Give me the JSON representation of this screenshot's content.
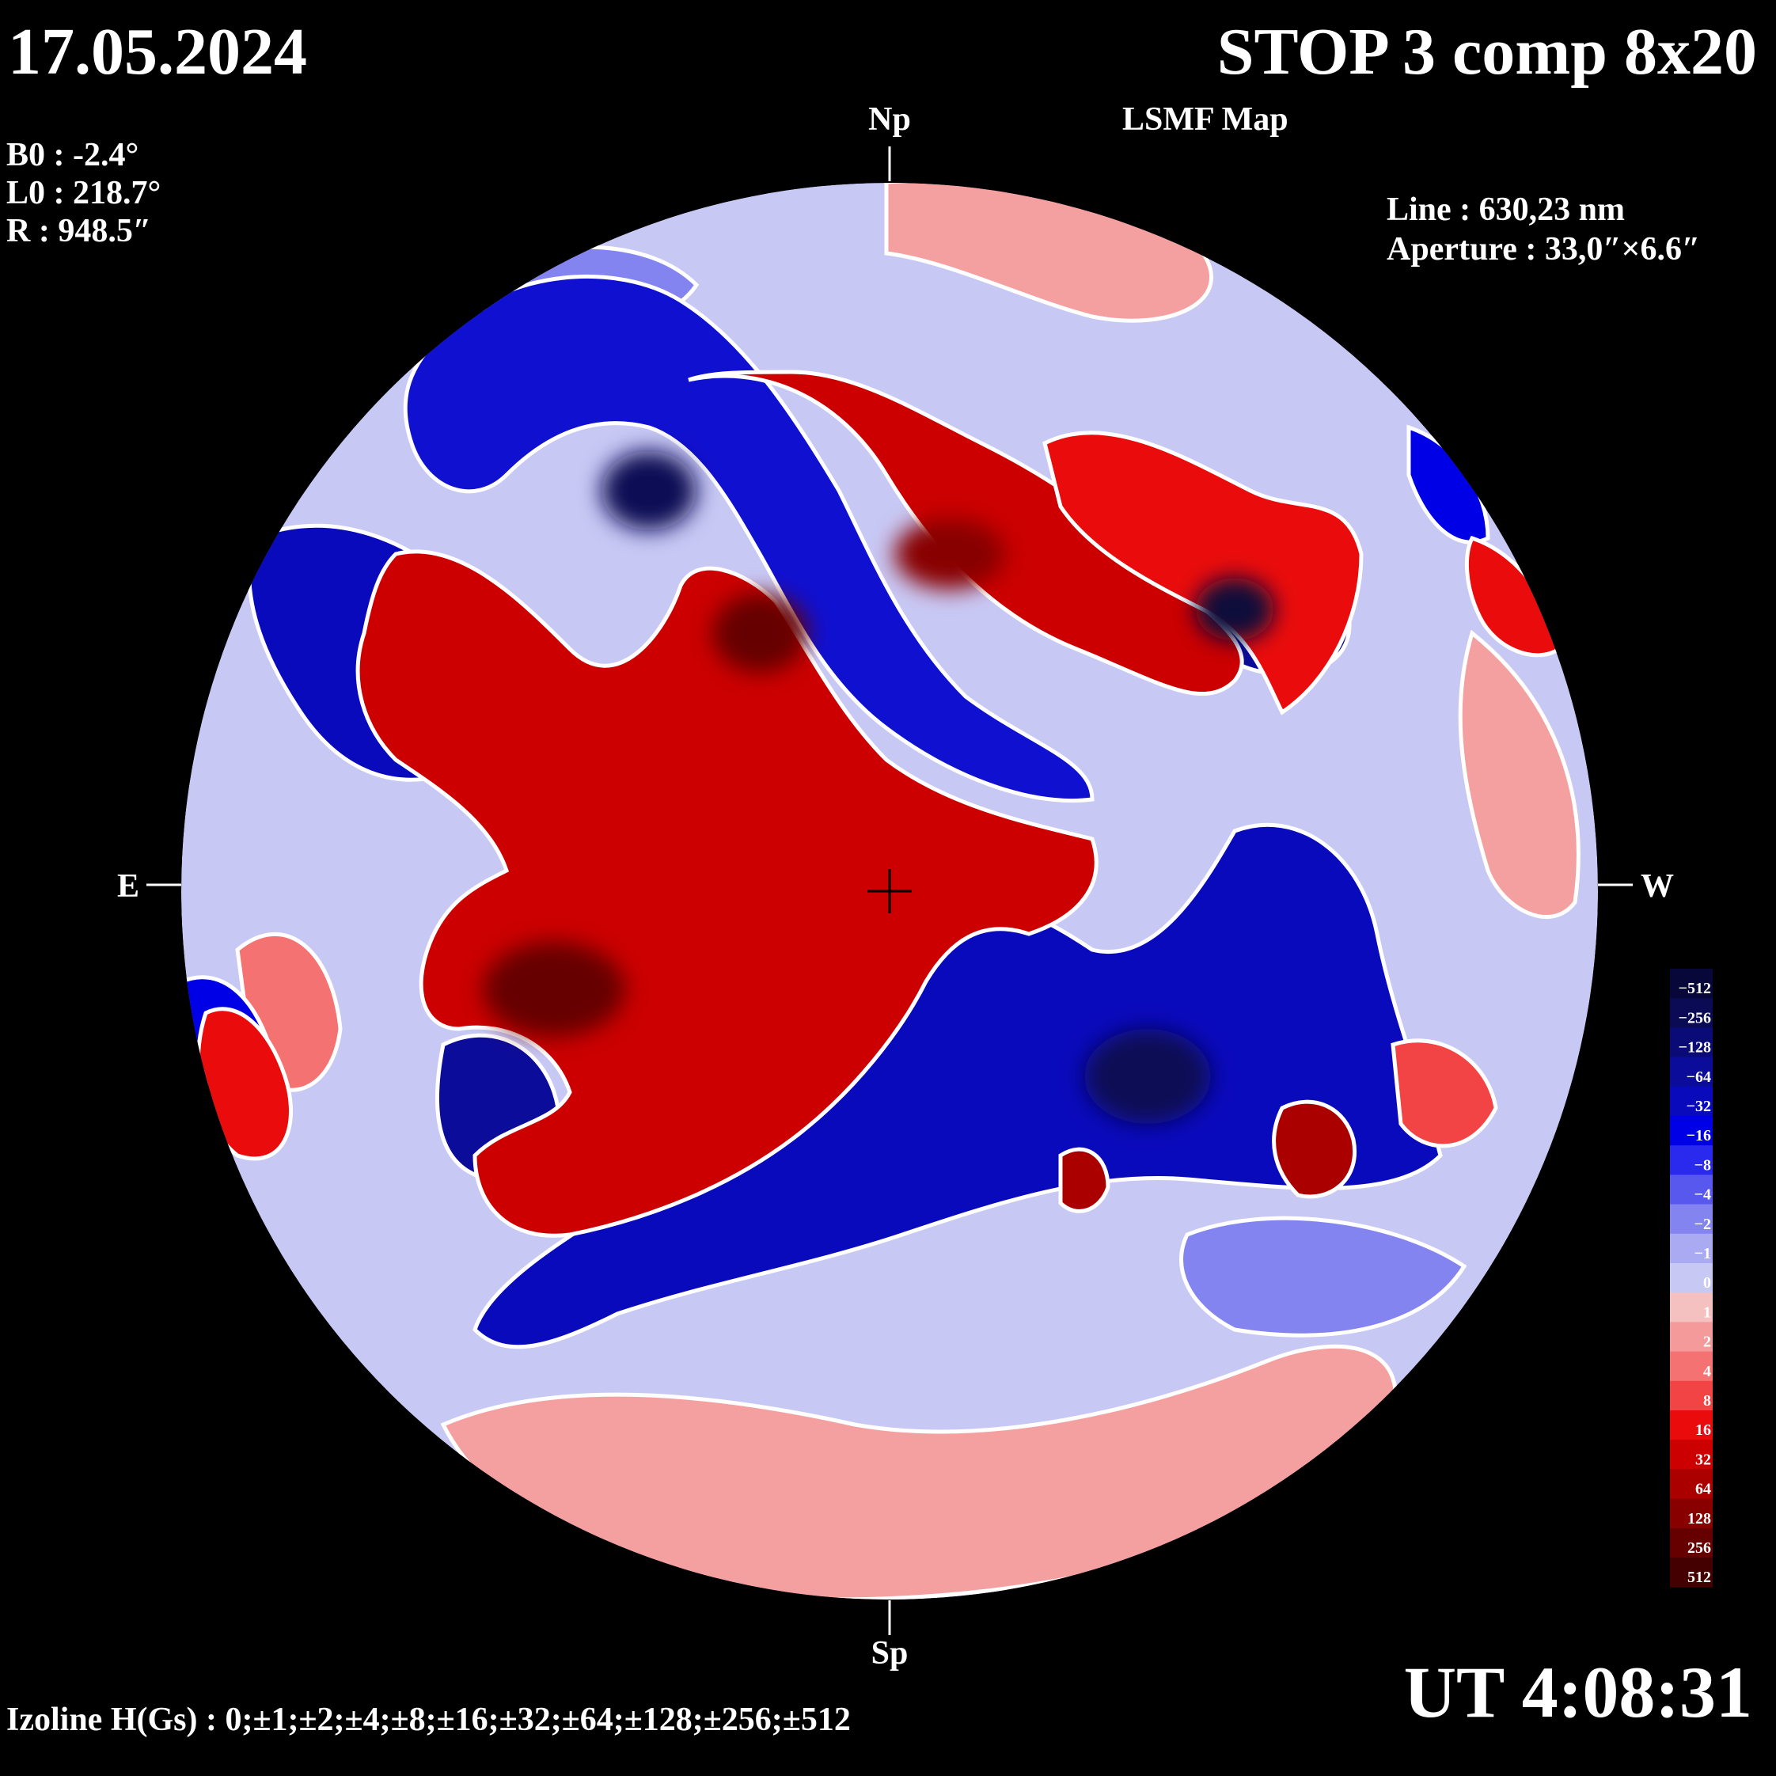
{
  "header": {
    "date": "17.05.2024",
    "title": "STOP 3 comp 8x20",
    "subtitle": "LSMF Map"
  },
  "params": {
    "b0": "B0 : -2.4°",
    "l0": "L0 : 218.7°",
    "r": "R  : 948.5″"
  },
  "observation": {
    "line": "Line : 630,23 nm",
    "aperture": "Aperture : 33,0″×6.6″"
  },
  "directions": {
    "north": "Np",
    "south": "Sp",
    "east": "E",
    "west": "W"
  },
  "footer": {
    "isoline": "Izoline H(Gs) : 0;±1;±2;±4;±8;±16;±32;±64;±128;±256;±512",
    "ut": "UT 4:08:31"
  },
  "colorbar": {
    "levels": [
      {
        "label": "−512",
        "color": "#07073a"
      },
      {
        "label": "−256",
        "color": "#0a0a55"
      },
      {
        "label": "−128",
        "color": "#0b0b78"
      },
      {
        "label": "−64",
        "color": "#0c0c9a"
      },
      {
        "label": "−32",
        "color": "#0a0abd"
      },
      {
        "label": "−16",
        "color": "#0000e6"
      },
      {
        "label": "−8",
        "color": "#2a2aef"
      },
      {
        "label": "−4",
        "color": "#5858ef"
      },
      {
        "label": "−2",
        "color": "#8484f0"
      },
      {
        "label": "−1",
        "color": "#aaaaf2"
      },
      {
        "label": "0",
        "color": "#c8c8f5"
      },
      {
        "label": "1",
        "color": "#f5c0c0"
      },
      {
        "label": "2",
        "color": "#f59a9a"
      },
      {
        "label": "4",
        "color": "#f57272"
      },
      {
        "label": "8",
        "color": "#f24444"
      },
      {
        "label": "16",
        "color": "#ea0c0c"
      },
      {
        "label": "32",
        "color": "#cc0000"
      },
      {
        "label": "64",
        "color": "#aa0000"
      },
      {
        "label": "128",
        "color": "#880000"
      },
      {
        "label": "256",
        "color": "#660000"
      },
      {
        "label": "512",
        "color": "#440000"
      }
    ]
  },
  "colors": {
    "background": "#000000",
    "disk_base": "#c8c8f5",
    "positive": "#dd0000",
    "negative": "#0000dd",
    "isoline": "#ffffff"
  }
}
